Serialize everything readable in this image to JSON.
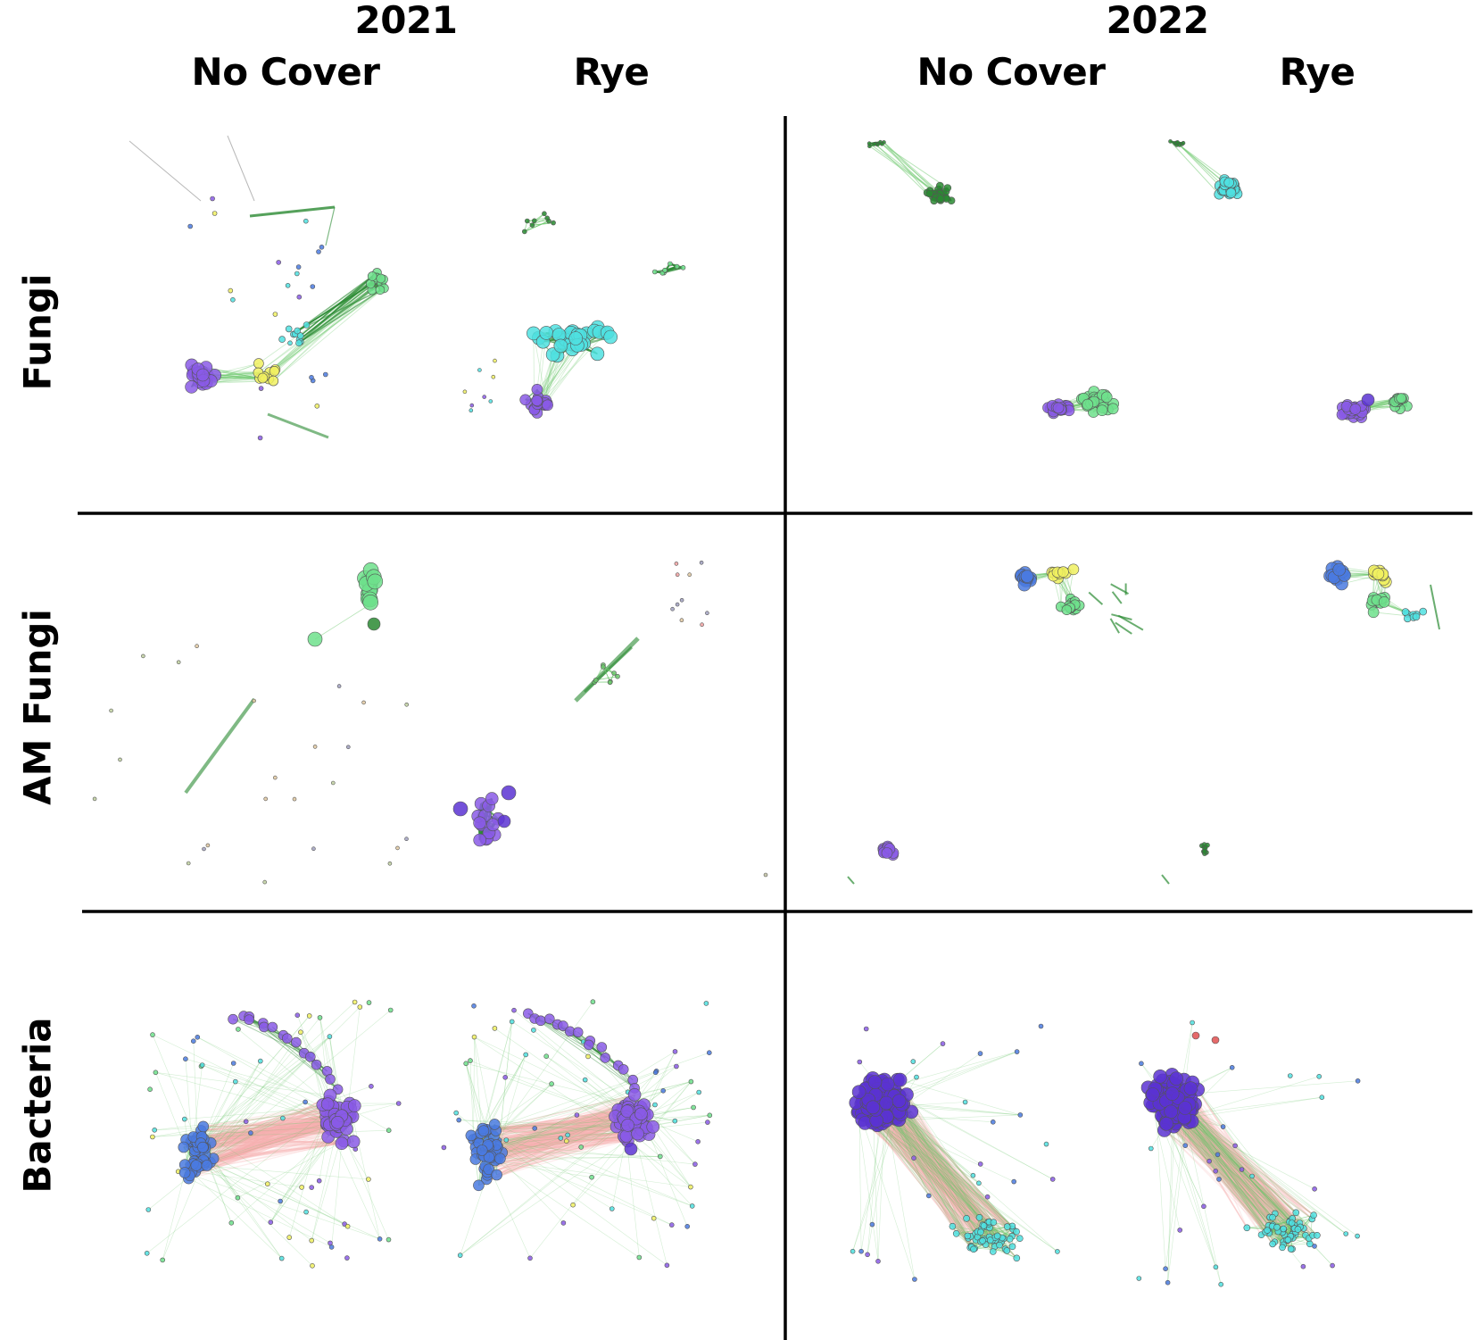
{
  "years": [
    "2021",
    "2022"
  ],
  "treatments": {
    "y2021": [
      "No Cover",
      "Rye"
    ],
    "y2022": [
      "No Cover",
      "Rye"
    ]
  },
  "rows": [
    "Fungi",
    "AM Fungi",
    "Bacteria"
  ],
  "colors": {
    "purple": "#8a5ae6",
    "deep_purple": "#5a32d2",
    "blue": "#4a7ae0",
    "cyan": "#4fe0e0",
    "green_node": "#6fe08c",
    "dark_green": "#2a8a32",
    "yellow": "#f0f060",
    "edge_green": "#6cc86c",
    "edge_pink": "#f7b0b0",
    "divider": "#000000"
  }
}
